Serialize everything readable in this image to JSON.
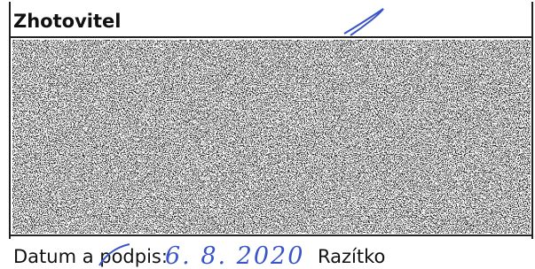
{
  "header": {
    "title": "Zhotovitel"
  },
  "footer": {
    "label": "Datum a podpis:",
    "date": "6. 8. 2020",
    "stamp": "Razítko"
  }
}
